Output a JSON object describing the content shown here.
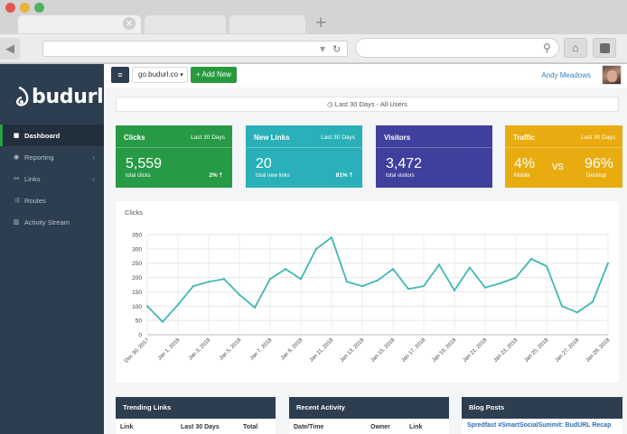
{
  "browser": {
    "new_tab_symbol": "+",
    "tab_close_symbol": "×",
    "back_icon": "◀",
    "reload_icon": "↻",
    "search_icon": "⚲",
    "home_icon": "⌂"
  },
  "sidebar": {
    "brand": "budurl",
    "items": [
      {
        "label": "Dashboard",
        "icon": "dashboard-icon",
        "glyph": "■",
        "active": true,
        "chevron": ""
      },
      {
        "label": "Reporting",
        "icon": "reporting-icon",
        "glyph": "◉",
        "active": false,
        "chevron": "‹"
      },
      {
        "label": "Links",
        "icon": "link-icon",
        "glyph": "⚯",
        "active": false,
        "chevron": "‹"
      },
      {
        "label": "Routes",
        "icon": "shuffle-icon",
        "glyph": "⤨",
        "active": false,
        "chevron": ""
      },
      {
        "label": "Activity Stream",
        "icon": "bar-chart-icon",
        "glyph": "▥",
        "active": false,
        "chevron": ""
      }
    ]
  },
  "topbar": {
    "menu_glyph": "≡",
    "domain": "go.budurl.co",
    "domain_caret": "▾",
    "add_new": "+ Add New",
    "user_name": "Andy Meadows"
  },
  "daterange": {
    "icon": "clock-icon",
    "label": "Last 30 Days - All Users"
  },
  "cards": {
    "clicks": {
      "title": "Clicks",
      "period": "Last 30 Days",
      "value": "5,559",
      "sub": "total clicks",
      "pct": "2% 🡑",
      "color": "#279a45"
    },
    "new_links": {
      "title": "New Links",
      "period": "Last 30 Days",
      "value": "20",
      "sub": "total new links",
      "pct": "81% 🡑",
      "color": "#2ab0b8"
    },
    "visitors": {
      "title": "Visitors",
      "value": "3,472",
      "sub": "total visitors",
      "color": "#3f3f9e"
    },
    "traffic": {
      "title": "Traffic",
      "period": "Last 30 Days",
      "mobile_value": "4%",
      "mobile_label": "Mobile",
      "vs": "vs",
      "desktop_value": "96%",
      "desktop_label": "Desktop",
      "color": "#e8ac10"
    }
  },
  "chart_data": {
    "type": "line",
    "title": "Clicks",
    "xlabel": "",
    "ylabel": "",
    "ylim": [
      0,
      350
    ],
    "yticks": [
      0,
      50,
      100,
      150,
      200,
      250,
      300,
      350
    ],
    "grid": true,
    "line_color": "#3fb8b3",
    "x": [
      "Dec 30, 2017",
      "Dec 31, 2017",
      "Jan 1, 2018",
      "Jan 2, 2018",
      "Jan 3, 2018",
      "Jan 4, 2018",
      "Jan 5, 2018",
      "Jan 6, 2018",
      "Jan 7, 2018",
      "Jan 8, 2018",
      "Jan 9, 2018",
      "Jan 10, 2018",
      "Jan 11, 2018",
      "Jan 12, 2018",
      "Jan 13, 2018",
      "Jan 14, 2018",
      "Jan 15, 2018",
      "Jan 16, 2018",
      "Jan 17, 2018",
      "Jan 18, 2018",
      "Jan 19, 2018",
      "Jan 20, 2018",
      "Jan 21, 2018",
      "Jan 22, 2018",
      "Jan 23, 2018",
      "Jan 24, 2018",
      "Jan 25, 2018",
      "Jan 26, 2018",
      "Jan 27, 2018",
      "Jan 28, 2018",
      "Jan 29, 2018"
    ],
    "values": [
      100,
      45,
      105,
      170,
      185,
      195,
      140,
      95,
      195,
      230,
      195,
      300,
      340,
      185,
      170,
      190,
      230,
      160,
      170,
      245,
      155,
      235,
      165,
      180,
      200,
      265,
      240,
      100,
      78,
      115,
      250
    ],
    "tick_labels": [
      "Dec 30, 2017",
      "Jan 1, 2018",
      "Jan 3, 2018",
      "Jan 5, 2018",
      "Jan 7, 2018",
      "Jan 9, 2018",
      "Jan 11, 2018",
      "Jan 13, 2018",
      "Jan 15, 2018",
      "Jan 17, 2018",
      "Jan 19, 2018",
      "Jan 21, 2018",
      "Jan 23, 2018",
      "Jan 25, 2018",
      "Jan 27, 2018",
      "Jan 29, 2018"
    ]
  },
  "panels": {
    "trending": {
      "title": "Trending Links",
      "cols": [
        "Link",
        "Last 30 Days",
        "Total"
      ]
    },
    "recent": {
      "title": "Recent Activity",
      "cols": [
        "Date/Time",
        "Owner",
        "Link"
      ]
    },
    "blog": {
      "title": "Blog Posts",
      "first_post": "Spredfast #SmartSocialSummit: BudURL Recap"
    }
  }
}
